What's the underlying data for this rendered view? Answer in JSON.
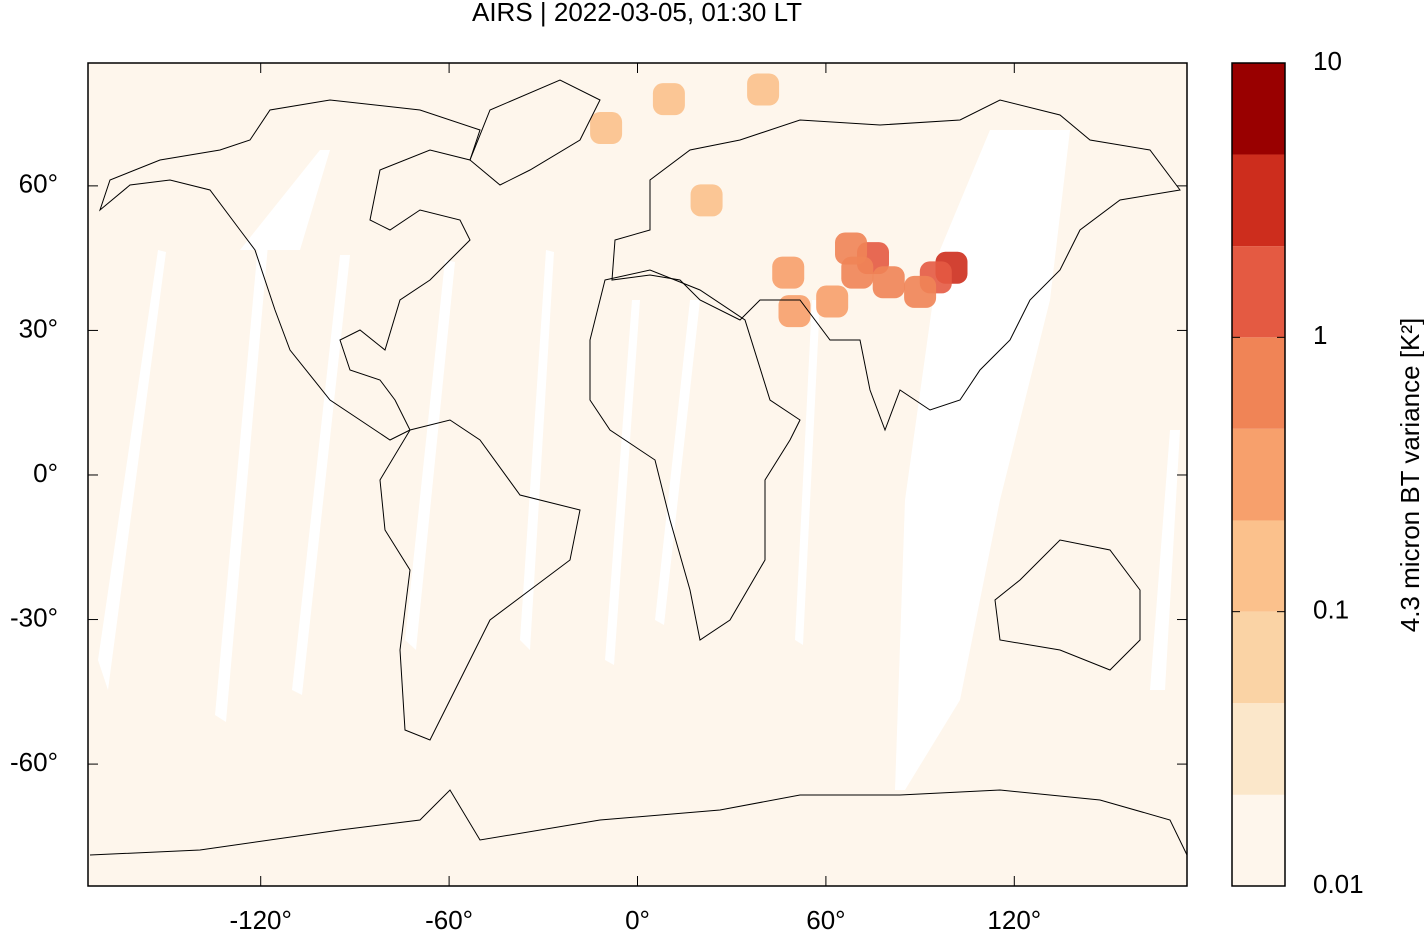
{
  "chart_data": {
    "type": "map",
    "title": "AIRS | 2022-03-05, 01:30 LT",
    "xlim": [
      -175,
      175
    ],
    "ylim": [
      -85.3,
      85.5
    ],
    "xticks": [
      {
        "value": -120,
        "label": "-120°"
      },
      {
        "value": -60,
        "label": "-60°"
      },
      {
        "value": 0,
        "label": "0°"
      },
      {
        "value": 60,
        "label": "60°"
      },
      {
        "value": 120,
        "label": "120°"
      }
    ],
    "yticks": [
      {
        "value": 60,
        "label": "60°"
      },
      {
        "value": 30,
        "label": "30°"
      },
      {
        "value": 0,
        "label": "0°"
      },
      {
        "value": -30,
        "label": "-30°"
      },
      {
        "value": -60,
        "label": "-60°"
      }
    ],
    "colorbar": {
      "label": "4.3 micron BT variance [K²]",
      "log_scale": true,
      "lim": [
        0.01,
        10
      ],
      "ticks": [
        0.01,
        0.1,
        1,
        10
      ],
      "levels": [
        0.01,
        0.0215,
        0.0464,
        0.1,
        0.215,
        0.464,
        1,
        2.15,
        4.64,
        10
      ],
      "colors": [
        "#fef6ec",
        "#fbe7ca",
        "#fad3a5",
        "#fbc18c",
        "#f7a06c",
        "#f08456",
        "#e45a42",
        "#cd2d1d",
        "#990000"
      ]
    },
    "cells": [
      {
        "lon": 100,
        "lat": 43,
        "value": 2.5
      },
      {
        "lon": 95,
        "lat": 41,
        "value": 1.5
      },
      {
        "lon": 90,
        "lat": 38,
        "value": 0.8
      },
      {
        "lon": 75,
        "lat": 45,
        "value": 1.2
      },
      {
        "lon": 70,
        "lat": 42,
        "value": 0.9
      },
      {
        "lon": 68,
        "lat": 47,
        "value": 0.6
      },
      {
        "lon": 80,
        "lat": 40,
        "value": 0.6
      },
      {
        "lon": 62,
        "lat": 36,
        "value": 0.4
      },
      {
        "lon": 48,
        "lat": 42,
        "value": 0.4
      },
      {
        "lon": 50,
        "lat": 34,
        "value": 0.25
      },
      {
        "lon": 22,
        "lat": 57,
        "value": 0.2
      },
      {
        "lon": 10,
        "lat": 78,
        "value": 0.15
      },
      {
        "lon": -10,
        "lat": 72,
        "value": 0.12
      },
      {
        "lon": 40,
        "lat": 80,
        "value": 0.1
      }
    ]
  }
}
